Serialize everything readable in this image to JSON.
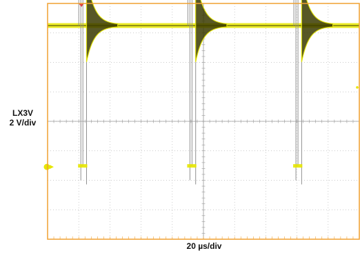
{
  "chart_data": {
    "type": "line",
    "title": "",
    "ylabel": "LX3V",
    "yscale_label": "2 V/div",
    "xscale_label": "20 µs/div",
    "grid": true,
    "frame_color": "#f0a030",
    "grid_color": "#b8b8b8",
    "series": [
      {
        "color": "#e6e600",
        "dark_color": "#3a3a00",
        "outline_color": "#909090",
        "baseline_div": 3.25,
        "high_div": 6.6,
        "low_div": -1.5,
        "undershoot_div": -2.0,
        "ringing_peak_div": 2.2,
        "ringing_decay_div": 0.35,
        "burst_starts_div": [
          1.0,
          4.5,
          7.9
        ],
        "burst_width_div": 0.25,
        "period_us": 70
      }
    ],
    "markers": {
      "trigger": "T",
      "ground_marker": "1",
      "ground_level_div": 0.65
    },
    "axes": {
      "x_divisions": 10,
      "y_divisions": 8,
      "x_units": "div",
      "y_units": "div"
    }
  }
}
